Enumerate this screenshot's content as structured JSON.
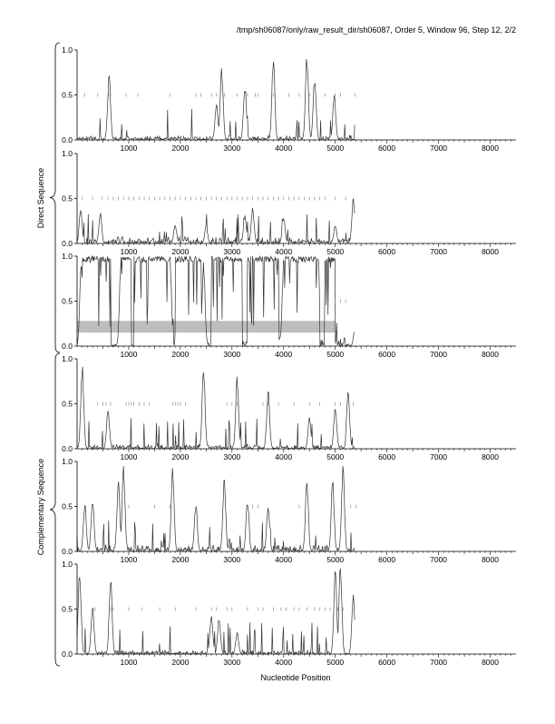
{
  "header": "/tmp/sh06087/only/raw_result_dir/sh06087, Order 5, Window 96, Step 12, 2/2",
  "side_labels": {
    "direct": "Direct Sequence",
    "complementary": "Complementary Sequence"
  },
  "x_axis_label": "Nucleotide Position",
  "colors": {
    "line": "#333333",
    "axis": "#000000",
    "band": "#bdbdbd",
    "marker": "#8c8c8c"
  },
  "chart_data": {
    "type": "line",
    "xlim": [
      0,
      8500
    ],
    "ylim": [
      0,
      1
    ],
    "x_ticks": [
      1000,
      2000,
      3000,
      4000,
      5000,
      6000,
      7000,
      8000
    ],
    "y_ticks": [
      "0.0",
      "0.5",
      "1.0"
    ],
    "panels": [
      {
        "name": "direct-frame-1",
        "data_end": 5380,
        "peaks": [
          [
            620,
            0.75
          ],
          [
            2700,
            0.42
          ],
          [
            2800,
            0.82
          ],
          [
            3250,
            0.62
          ],
          [
            3800,
            0.92
          ],
          [
            4450,
            0.98
          ],
          [
            4600,
            0.72
          ],
          [
            4980,
            0.5
          ]
        ],
        "noise": 0.06,
        "markers_y": 0.5,
        "markers_x": [
          150,
          400,
          610,
          650,
          950,
          1180,
          1800,
          2300,
          2400,
          2600,
          2700,
          2850,
          3100,
          3300,
          3450,
          3500,
          3800,
          4100,
          4300,
          4500,
          4800,
          5000,
          5100,
          5380
        ],
        "band": null
      },
      {
        "name": "direct-frame-2",
        "data_end": 5380,
        "peaks": [
          [
            70,
            0.4
          ],
          [
            450,
            0.35
          ],
          [
            1900,
            0.22
          ],
          [
            2500,
            0.2
          ],
          [
            3250,
            0.32
          ],
          [
            3400,
            0.4
          ],
          [
            4000,
            0.3
          ],
          [
            5000,
            0.22
          ],
          [
            5350,
            0.52
          ]
        ],
        "noise": 0.08,
        "markers_y": 0.5,
        "markers_x": [
          100,
          300,
          480,
          600,
          700,
          800,
          900,
          1000,
          1100,
          1200,
          1300,
          1400,
          1500,
          1600,
          1700,
          1800,
          1900,
          2000,
          2100,
          2200,
          2300,
          2400,
          2500,
          2600,
          2700,
          2800,
          2900,
          3000,
          3100,
          3200,
          3300,
          3400,
          3500,
          3600,
          3700,
          3800,
          3900,
          4000,
          4100,
          4200,
          4300,
          4400,
          4500,
          4600,
          4700,
          4800,
          5000,
          5200
        ],
        "band": null
      },
      {
        "name": "direct-frame-3",
        "data_end": 5380,
        "peaks": [
          [
            80,
            0.95
          ],
          [
            300,
            1.0
          ],
          [
            550,
            0.95
          ],
          [
            850,
            1.0
          ],
          [
            1800,
            1.0
          ],
          [
            2450,
            0.95
          ],
          [
            3000,
            0.98
          ],
          [
            3500,
            0.96
          ],
          [
            4000,
            0.98
          ],
          [
            4500,
            0.97
          ],
          [
            4900,
            0.96
          ],
          [
            5380,
            0.18
          ]
        ],
        "noise": 0.12,
        "saturated_ranges": [
          [
            100,
            650
          ],
          [
            850,
            1050
          ],
          [
            1100,
            1800
          ],
          [
            1900,
            2400
          ],
          [
            2600,
            3200
          ],
          [
            3300,
            3900
          ],
          [
            4000,
            4700
          ],
          [
            4800,
            5000
          ]
        ],
        "markers_y": 0.5,
        "markers_x": [
          5000,
          5100,
          5200
        ],
        "band": [
          0.15,
          0.28,
          0,
          5000
        ]
      },
      {
        "name": "complementary-frame-1",
        "data_end": 5380,
        "peaks": [
          [
            100,
            0.95
          ],
          [
            600,
            0.45
          ],
          [
            2450,
            0.92
          ],
          [
            3100,
            0.82
          ],
          [
            3700,
            0.66
          ],
          [
            4500,
            0.35
          ],
          [
            5000,
            0.5
          ],
          [
            5250,
            0.66
          ]
        ],
        "noise": 0.06,
        "markers_y": 0.5,
        "markers_x": [
          400,
          500,
          560,
          650,
          950,
          1000,
          1050,
          1100,
          1200,
          1300,
          1400,
          1850,
          1900,
          1950,
          2000,
          2100,
          2900,
          3000,
          3100,
          3600,
          3700,
          3900,
          4200,
          4500,
          4700,
          5000,
          5100,
          5350
        ],
        "band": null
      },
      {
        "name": "complementary-frame-2",
        "data_end": 5380,
        "peaks": [
          [
            150,
            0.55
          ],
          [
            300,
            0.58
          ],
          [
            800,
            0.82
          ],
          [
            900,
            0.98
          ],
          [
            1850,
            0.96
          ],
          [
            2300,
            0.55
          ],
          [
            2850,
            0.82
          ],
          [
            3300,
            0.6
          ],
          [
            3700,
            0.52
          ],
          [
            4450,
            0.82
          ],
          [
            4950,
            0.82
          ],
          [
            5150,
            0.98
          ]
        ],
        "noise": 0.08,
        "markers_y": 0.5,
        "markers_x": [
          1000,
          1500,
          1800,
          3400,
          3500,
          4300,
          5300,
          5400
        ],
        "band": null
      },
      {
        "name": "complementary-frame-3",
        "data_end": 5380,
        "peaks": [
          [
            50,
            0.95
          ],
          [
            300,
            0.55
          ],
          [
            650,
            0.88
          ],
          [
            2600,
            0.46
          ],
          [
            2750,
            0.42
          ],
          [
            3100,
            0.25
          ],
          [
            5000,
            0.98
          ],
          [
            5100,
            1.0
          ],
          [
            5350,
            0.66
          ]
        ],
        "noise": 0.05,
        "markers_y": 0.5,
        "markers_x": [
          350,
          650,
          700,
          1000,
          1250,
          1600,
          1900,
          2300,
          2600,
          2700,
          2900,
          3000,
          3300,
          3500,
          3600,
          3800,
          3950,
          4050,
          4200,
          4300,
          4450,
          4600,
          4700,
          4800,
          4900,
          5050,
          5150
        ],
        "band": null
      }
    ]
  }
}
